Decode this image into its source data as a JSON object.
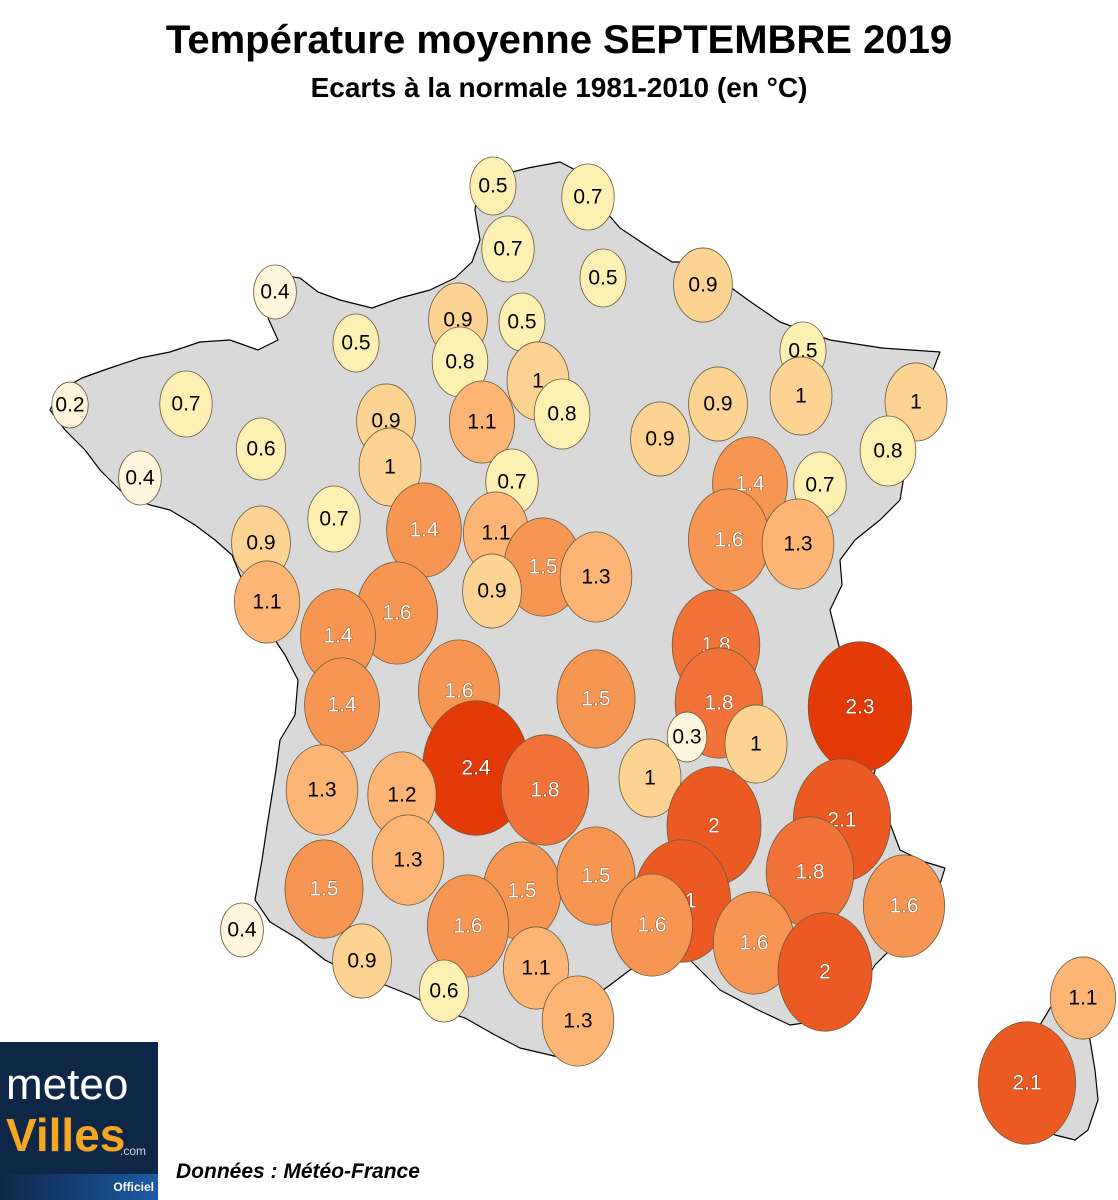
{
  "header": {
    "title": "Température moyenne SEPTEMBRE 2019",
    "subtitle": "Ecarts à la normale 1981-2010 (en °C)"
  },
  "legend_colors": {
    "very_low": "#fdf6dd",
    "low": "#fdf0b3",
    "mid_low": "#fdd393",
    "mid": "#fcb574",
    "mid_high": "#f79552",
    "high": "#f2733a",
    "very_high": "#ec5a24",
    "extreme": "#e43a08"
  },
  "stations": [
    {
      "label": "0.5",
      "value": 0.5
    },
    {
      "label": "0.7",
      "value": 0.7
    },
    {
      "label": "0.7",
      "value": 0.7
    },
    {
      "label": "0.5",
      "value": 0.5
    },
    {
      "label": "0.9",
      "value": 0.9
    },
    {
      "label": "0.4",
      "value": 0.4
    },
    {
      "label": "0.9",
      "value": 0.9
    },
    {
      "label": "0.5",
      "value": 0.5
    },
    {
      "label": "0.5",
      "value": 0.5
    },
    {
      "label": "0.8",
      "value": 0.8
    },
    {
      "label": "0.5",
      "value": 0.5
    },
    {
      "label": "1",
      "value": 1.0
    },
    {
      "label": "0.2",
      "value": 0.2
    },
    {
      "label": "0.7",
      "value": 0.7
    },
    {
      "label": "0.8",
      "value": 0.8
    },
    {
      "label": "1",
      "value": 1.0
    },
    {
      "label": "0.9",
      "value": 0.9
    },
    {
      "label": "0.9",
      "value": 0.9
    },
    {
      "label": "1",
      "value": 1.0
    },
    {
      "label": "1.1",
      "value": 1.1
    },
    {
      "label": "0.6",
      "value": 0.6
    },
    {
      "label": "0.8",
      "value": 0.8
    },
    {
      "label": "0.9",
      "value": 0.9
    },
    {
      "label": "1",
      "value": 1.0
    },
    {
      "label": "0.4",
      "value": 0.4
    },
    {
      "label": "0.7",
      "value": 0.7
    },
    {
      "label": "1.4",
      "value": 1.4
    },
    {
      "label": "0.7",
      "value": 0.7
    },
    {
      "label": "0.7",
      "value": 0.7
    },
    {
      "label": "1.4",
      "value": 1.4
    },
    {
      "label": "1.1",
      "value": 1.1
    },
    {
      "label": "1.6",
      "value": 1.6
    },
    {
      "label": "1.3",
      "value": 1.3
    },
    {
      "label": "0.9",
      "value": 0.9
    },
    {
      "label": "1.5",
      "value": 1.5
    },
    {
      "label": "1.3",
      "value": 1.3
    },
    {
      "label": "1.1",
      "value": 1.1
    },
    {
      "label": "1.6",
      "value": 1.6
    },
    {
      "label": "0.9",
      "value": 0.9
    },
    {
      "label": "1.4",
      "value": 1.4
    },
    {
      "label": "1.8",
      "value": 1.8
    },
    {
      "label": "1.6",
      "value": 1.6
    },
    {
      "label": "1.5",
      "value": 1.5
    },
    {
      "label": "1.4",
      "value": 1.4
    },
    {
      "label": "1.8",
      "value": 1.8
    },
    {
      "label": "2.3",
      "value": 2.3
    },
    {
      "label": "0.3",
      "value": 0.3
    },
    {
      "label": "1",
      "value": 1.0
    },
    {
      "label": "2.4",
      "value": 2.4
    },
    {
      "label": "1",
      "value": 1.0
    },
    {
      "label": "1.3",
      "value": 1.3
    },
    {
      "label": "1.2",
      "value": 1.2
    },
    {
      "label": "1.8",
      "value": 1.8
    },
    {
      "label": "2",
      "value": 2.0
    },
    {
      "label": "2.1",
      "value": 2.1
    },
    {
      "label": "1.3",
      "value": 1.3
    },
    {
      "label": "1.8",
      "value": 1.8
    },
    {
      "label": "1.5",
      "value": 1.5
    },
    {
      "label": "1.5",
      "value": 1.5
    },
    {
      "label": "1.5",
      "value": 1.5
    },
    {
      "label": "2.1",
      "value": 2.1
    },
    {
      "label": "1.6",
      "value": 1.6
    },
    {
      "label": "1.6",
      "value": 1.6
    },
    {
      "label": "1.6",
      "value": 1.6
    },
    {
      "label": "1.6",
      "value": 1.6
    },
    {
      "label": "0.4",
      "value": 0.4
    },
    {
      "label": "0.9",
      "value": 0.9
    },
    {
      "label": "1.1",
      "value": 1.1
    },
    {
      "label": "2",
      "value": 2.0
    },
    {
      "label": "0.6",
      "value": 0.6
    },
    {
      "label": "1.3",
      "value": 1.3
    },
    {
      "label": "1.1",
      "value": 1.1
    },
    {
      "label": "2.1",
      "value": 2.1
    }
  ],
  "logo": {
    "meteo": "meteo",
    "villes": "Villes",
    "com": ".com",
    "officiel": "Officiel"
  },
  "footer": {
    "source": "Données : Météo-France"
  }
}
